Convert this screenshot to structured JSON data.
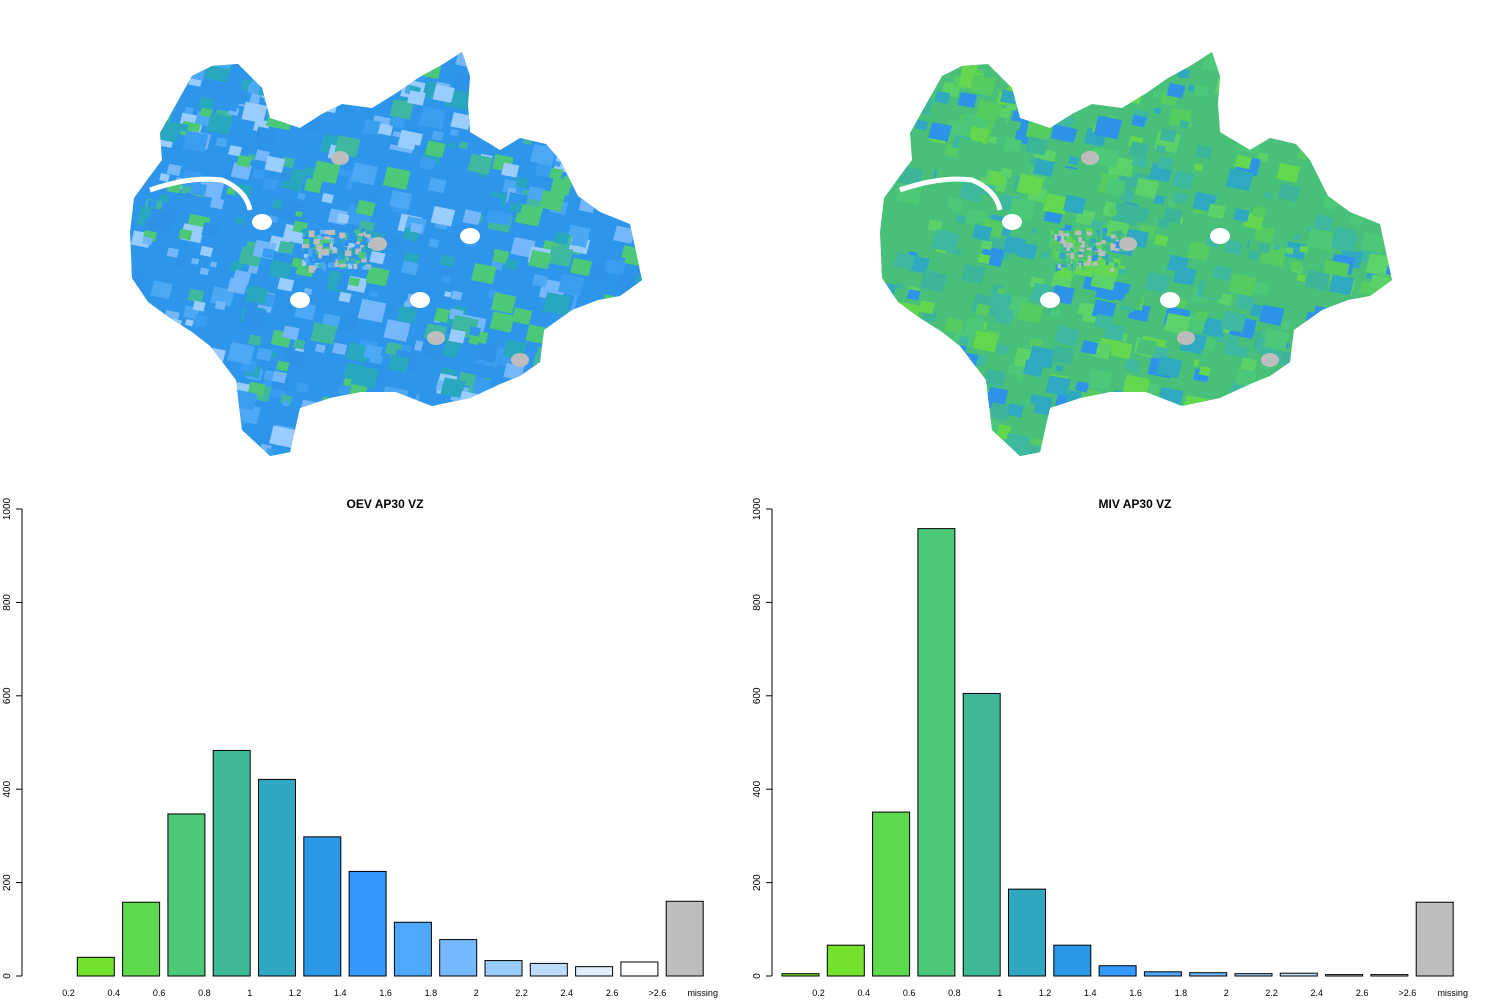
{
  "maps": [
    {
      "name": "oev-map",
      "base": "#2e96ea",
      "palette": [
        "#2e96ea",
        "#3a9ef0",
        "#4aa8f5",
        "#74b8fb",
        "#99ccff",
        "#28a7bf",
        "#3fb8a0",
        "#4bc878",
        "#2d93e6"
      ],
      "missing": "#bdbdbd"
    },
    {
      "name": "miv-map",
      "base": "#48c07a",
      "palette": [
        "#48c07a",
        "#55cc62",
        "#3fb8a0",
        "#62d74f",
        "#30a8c0",
        "#2d93e6",
        "#4bc878",
        "#5cd26a",
        "#3db59a"
      ],
      "missing": "#bdbdbd"
    }
  ],
  "chart_data": [
    {
      "type": "bar",
      "title": "OEV AP30 VZ",
      "categories": [
        "0.2",
        "0.4",
        "0.6",
        "0.8",
        "1",
        "1.2",
        "1.4",
        "1.6",
        "1.8",
        "2",
        "2.2",
        "2.4",
        "2.6",
        ">2.6",
        "missing"
      ],
      "values": [
        0,
        40,
        158,
        347,
        483,
        421,
        298,
        224,
        115,
        78,
        33,
        27,
        20,
        30,
        160
      ],
      "colors": [
        "#74e12a",
        "#74e12a",
        "#5ed94e",
        "#4bc878",
        "#3fb89a",
        "#2fa7c0",
        "#2a98e6",
        "#3399ff",
        "#4da8ff",
        "#74b8fd",
        "#99ccfb",
        "#bcdcfa",
        "#dfeefb",
        "#ffffff",
        "#bebebe"
      ],
      "ylim": [
        0,
        1000
      ],
      "yticks": [
        0,
        200,
        400,
        600,
        800,
        1000
      ],
      "xlabel": "",
      "ylabel": ""
    },
    {
      "type": "bar",
      "title": "MIV AP30 VZ",
      "categories": [
        "0.2",
        "0.4",
        "0.6",
        "0.8",
        "1",
        "1.2",
        "1.4",
        "1.6",
        "1.8",
        "2",
        "2.2",
        "2.4",
        "2.6",
        ">2.6",
        "missing"
      ],
      "values": [
        5,
        66,
        351,
        958,
        605,
        186,
        66,
        22,
        9,
        7,
        5,
        6,
        3,
        3,
        158
      ],
      "colors": [
        "#74e12a",
        "#74e12a",
        "#5ed94e",
        "#4bc878",
        "#3fb89a",
        "#2fa7c0",
        "#2a98e6",
        "#3399ff",
        "#4da8ff",
        "#74b8fd",
        "#99ccfb",
        "#bcdcfa",
        "#dfeefb",
        "#ffffff",
        "#bebebe"
      ],
      "ylim": [
        0,
        1000
      ],
      "yticks": [
        0,
        200,
        400,
        600,
        800,
        1000
      ],
      "xlabel": "",
      "ylabel": ""
    }
  ]
}
